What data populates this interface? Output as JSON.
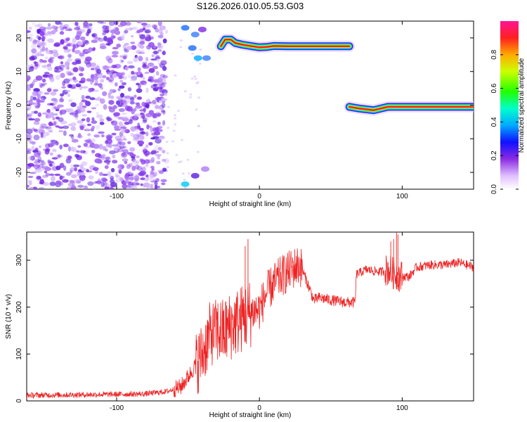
{
  "title": "S126.2026.010.05.53.G03",
  "chart_data": [
    {
      "type": "heatmap",
      "name": "spectrogram",
      "xlabel": "Height of straight line (km)",
      "ylabel": "Frequency (Hz)",
      "xlim": [
        -163,
        150
      ],
      "ylim": [
        -25,
        25
      ],
      "xticks": [
        -100,
        0,
        100
      ],
      "yticks": [
        -20,
        -10,
        0,
        10,
        20
      ],
      "colorbar": {
        "label": "Normalized spectral amplitude",
        "range": [
          0,
          1
        ],
        "ticks": [
          "0.0",
          "0.2",
          "0.4",
          "0.6",
          "0.8"
        ]
      },
      "ridges": [
        {
          "name": "upper-ridge",
          "points": [
            [
              -27,
              17.5
            ],
            [
              -24,
              19.5
            ],
            [
              -20,
              19.5
            ],
            [
              -17,
              18.5
            ],
            [
              -12,
              18
            ],
            [
              -5,
              17.5
            ],
            [
              0,
              17.2
            ],
            [
              5,
              17.3
            ],
            [
              10,
              17.6
            ],
            [
              20,
              17.5
            ],
            [
              40,
              17.5
            ],
            [
              60,
              17.5
            ],
            [
              63,
              17.5
            ]
          ]
        },
        {
          "name": "lower-ridge",
          "points": [
            [
              63,
              -0.5
            ],
            [
              70,
              -1
            ],
            [
              80,
              -1.5
            ],
            [
              90,
              -0.5
            ],
            [
              100,
              -0.5
            ],
            [
              120,
              -0.5
            ],
            [
              140,
              -0.5
            ],
            [
              150,
              -0.5
            ]
          ]
        }
      ],
      "noise_region": {
        "x_from": -163,
        "x_to": -65
      }
    },
    {
      "type": "line",
      "name": "snr",
      "xlabel": "Height of straight line (km)",
      "ylabel": "SNR (10 * v/v)",
      "xlim": [
        -163,
        150
      ],
      "ylim": [
        0,
        360
      ],
      "xticks": [
        -100,
        0,
        100
      ],
      "yticks": [
        0,
        100,
        200,
        300
      ],
      "color": "#ee2222",
      "series": [
        {
          "name": "SNR envelope",
          "x": [
            -163,
            -130,
            -100,
            -80,
            -65,
            -55,
            -48,
            -40,
            -35,
            -30,
            -25,
            -20,
            -15,
            -10,
            -5,
            0,
            5,
            10,
            15,
            20,
            25,
            28,
            30,
            35,
            38,
            42,
            50,
            60,
            67,
            68,
            75,
            85,
            90,
            95,
            100,
            105,
            110,
            120,
            130,
            140,
            150
          ],
          "y": [
            12,
            13,
            14,
            15,
            20,
            30,
            60,
            100,
            140,
            150,
            145,
            160,
            170,
            180,
            190,
            195,
            230,
            250,
            265,
            275,
            285,
            290,
            280,
            240,
            215,
            220,
            215,
            210,
            210,
            270,
            280,
            275,
            280,
            270,
            265,
            265,
            285,
            290,
            290,
            295,
            285
          ]
        }
      ]
    }
  ]
}
